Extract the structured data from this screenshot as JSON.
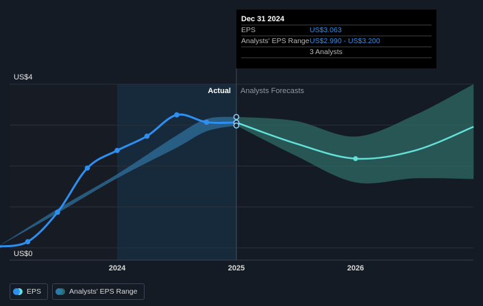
{
  "tooltip": {
    "date": "Dec 31 2024",
    "rows": [
      {
        "label": "EPS",
        "value": "US$3.063"
      },
      {
        "label": "Analysts' EPS Range",
        "value": "US$2.990 - US$3.200"
      },
      {
        "label": "",
        "value": "3 Analysts"
      }
    ]
  },
  "region_labels": {
    "actual": "Actual",
    "forecast": "Analysts Forecasts"
  },
  "legend": [
    {
      "label": "EPS",
      "color": "#2f8ff0",
      "color2": "#64e0d8"
    },
    {
      "label": "Analysts' EPS Range",
      "color": "#2a7ba8",
      "color2": "#2e6b6b"
    }
  ],
  "colors": {
    "eps": "#2f8ff0",
    "forecast": "#64e0d8",
    "range_fill": "#2e6b66",
    "background": "#151b24"
  },
  "chart_data": {
    "type": "line",
    "y_tick_labels": [
      "US$4",
      "US$0"
    ],
    "ylim": [
      0,
      4
    ],
    "x_tick_labels": [
      "2024",
      "2025",
      "2026"
    ],
    "x_ticks": [
      2024.0,
      2025.0,
      2026.0
    ],
    "xlim": [
      2022.85,
      2026.99
    ],
    "series": [
      {
        "name": "EPS",
        "x": [
          2023.0,
          2023.25,
          2023.5,
          2023.75,
          2024.0,
          2024.25,
          2024.5,
          2024.75,
          2025.0
        ],
        "y": [
          0.03,
          0.15,
          0.87,
          1.95,
          2.38,
          2.73,
          3.25,
          3.07,
          3.063
        ],
        "markers": true
      },
      {
        "name": "Analysts Forecasts",
        "x": [
          2025.0,
          2025.5,
          2026.0,
          2026.5,
          2026.99
        ],
        "y": [
          3.063,
          2.55,
          2.18,
          2.38,
          2.96
        ],
        "markers_at": [
          2026.0
        ]
      }
    ],
    "analyst_range": {
      "x": [
        2025.0,
        2025.5,
        2026.0,
        2026.5,
        2026.99
      ],
      "low": [
        2.99,
        2.25,
        1.6,
        1.7,
        1.68
      ],
      "high": [
        3.2,
        3.1,
        2.72,
        3.25,
        4.0
      ]
    },
    "historical_range": {
      "x": [
        2023.0,
        2023.5,
        2024.0,
        2024.5,
        2024.75,
        2025.0
      ],
      "low": [
        0.03,
        0.85,
        1.7,
        2.45,
        2.85,
        2.99
      ],
      "high": [
        0.03,
        0.95,
        1.8,
        2.75,
        3.15,
        3.2
      ]
    },
    "tooltip_points": [
      3.2,
      3.063,
      2.99
    ],
    "grid": true,
    "legend_position": "bottom-left"
  }
}
